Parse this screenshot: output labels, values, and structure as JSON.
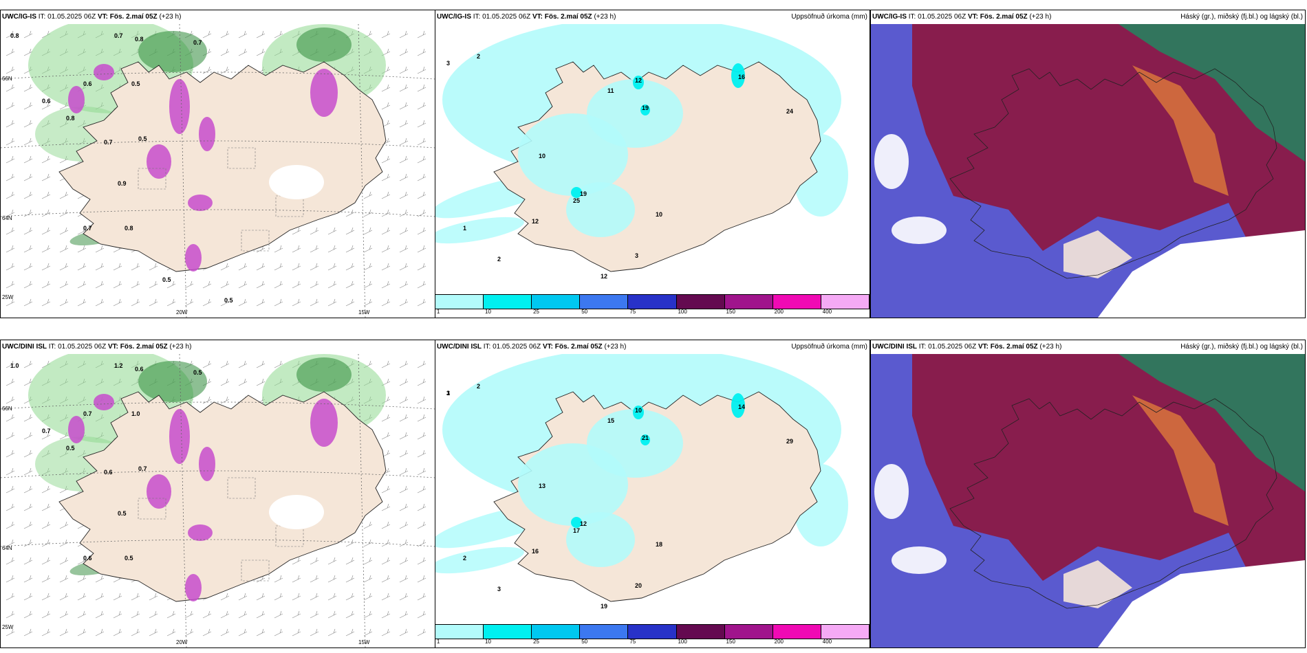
{
  "rows": [
    {
      "model": "UWC/IG-IS",
      "it_label": "IT:",
      "it_value": "01.05.2025 06Z",
      "vt_label": "VT:",
      "vt_value": "Fös. 2.maí 05Z",
      "lead": "(+23 h)"
    },
    {
      "model": "UWC/DINI ISL",
      "it_label": "IT:",
      "it_value": "01.05.2025 06Z",
      "vt_label": "VT:",
      "vt_value": "Fös. 2.maí 05Z",
      "lead": "(+23 h)"
    }
  ],
  "precip_title": "Uppsöfnuð úrkoma (mm)",
  "cloud_title": "Háský (gr.), miðský (fj.bl.) og lágský (bl.)",
  "axes": {
    "lon_labels": [
      "20W",
      "15W"
    ],
    "lat_labels": [
      "66N",
      "64N",
      "25W"
    ]
  },
  "colorbar": {
    "ticks": [
      "1",
      "10",
      "25",
      "50",
      "75",
      "100",
      "150",
      "200",
      "400"
    ],
    "colors": [
      "#b3fbfb",
      "#00f0f0",
      "#00c8f0",
      "#3c78f0",
      "#2832c8",
      "#640a50",
      "#a0148c",
      "#f00ab4",
      "#f5aaf5"
    ]
  },
  "colors": {
    "land": "#f5e6d8",
    "precip_light": "#b3fbfb",
    "precip_mid": "#00f0f0",
    "snow_green": "#8fd88f",
    "snow_dark": "#2f8a3a",
    "magenta": "#c74ccc",
    "cloud_blue": "#5a5acf",
    "cloud_red": "#8b1a46",
    "cloud_orange": "#d9743c",
    "cloud_teal": "#2d7a5e"
  },
  "chart_data": [
    {
      "type": "map",
      "panel": "top-left",
      "values": [
        "0.8",
        "0.7",
        "0.8",
        "0.7",
        "0.6",
        "0.5",
        "0.6",
        "0.8",
        "0.7",
        "0.5",
        "0.9",
        "0.7",
        "0.8",
        "0.5",
        "0.5"
      ]
    },
    {
      "type": "map",
      "panel": "top-middle",
      "values": [
        "3",
        "2",
        "12",
        "11",
        "19",
        "16",
        "24",
        "10",
        "12",
        "25",
        "19",
        "12",
        "10",
        "3",
        "2",
        "1"
      ]
    },
    {
      "type": "map",
      "panel": "bottom-left",
      "values": [
        "1.0",
        "1.2",
        "0.6",
        "0.5",
        "0.7",
        "1.0",
        "0.7",
        "0.5",
        "0.6",
        "0.7",
        "0.5",
        "0.6",
        "0.5"
      ]
    },
    {
      "type": "map",
      "panel": "bottom-middle",
      "values": [
        "3",
        "2",
        "10",
        "15",
        "21",
        "14",
        "29",
        "13",
        "16",
        "17",
        "12",
        "19",
        "18",
        "20",
        "3",
        "2",
        "1"
      ]
    }
  ]
}
